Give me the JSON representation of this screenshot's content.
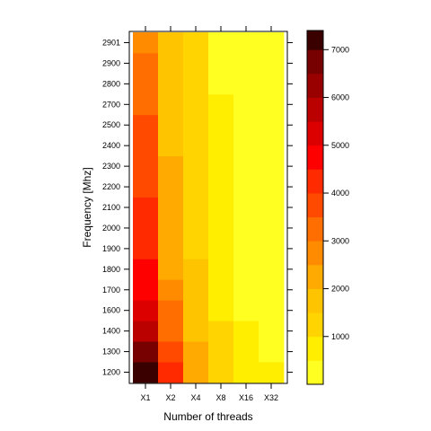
{
  "chart_data": {
    "type": "heatmap",
    "xlabel": "Number of threads",
    "ylabel": "Frequency [Mhz]",
    "x_categories": [
      "X1",
      "X2",
      "X4",
      "X8",
      "X16",
      "X32"
    ],
    "y_categories": [
      "1200",
      "1300",
      "1400",
      "1600",
      "1700",
      "1800",
      "1900",
      "2000",
      "2100",
      "2200",
      "2300",
      "2400",
      "2500",
      "2700",
      "2800",
      "2900",
      "2901"
    ],
    "values": [
      [
        7300,
        4100,
        2100,
        1300,
        600,
        500
      ],
      [
        6600,
        3600,
        2000,
        1200,
        550,
        450
      ],
      [
        5900,
        3300,
        1900,
        1100,
        500,
        420
      ],
      [
        5300,
        3200,
        1800,
        700,
        450,
        380
      ],
      [
        4900,
        2500,
        1600,
        650,
        420,
        350
      ],
      [
        4700,
        2300,
        1500,
        600,
        400,
        150
      ],
      [
        4300,
        2200,
        1400,
        600,
        380,
        350
      ],
      [
        4100,
        2200,
        1300,
        580,
        360,
        200
      ],
      [
        4000,
        2000,
        1250,
        560,
        350,
        200
      ],
      [
        3900,
        2100,
        1200,
        550,
        340,
        250
      ],
      [
        3800,
        2000,
        1150,
        540,
        330,
        320
      ],
      [
        3700,
        1900,
        1100,
        520,
        320,
        100
      ],
      [
        3600,
        1850,
        1100,
        510,
        310,
        300
      ],
      [
        3300,
        1800,
        1050,
        500,
        300,
        290
      ],
      [
        3100,
        1800,
        1000,
        490,
        290,
        280
      ],
      [
        3200,
        1750,
        1000,
        480,
        280,
        270
      ],
      [
        2800,
        1700,
        1000,
        470,
        270,
        260
      ]
    ],
    "colorbar": {
      "breaks": [
        0,
        500,
        1000,
        1500,
        2000,
        2500,
        3000,
        3500,
        4000,
        4500,
        5000,
        5500,
        6000,
        6500,
        7000,
        7500
      ],
      "colors": [
        "#ffff22",
        "#ffee00",
        "#ffd400",
        "#ffc400",
        "#ffaa00",
        "#ff8c00",
        "#ff6e00",
        "#ff4a00",
        "#ff2a00",
        "#ff0000",
        "#dd0000",
        "#bb0000",
        "#990000",
        "#770000",
        "#3a0000"
      ],
      "top_color": "#000000",
      "ticks": [
        1000,
        2000,
        3000,
        4000,
        5000,
        6000,
        7000
      ],
      "range": [
        0,
        7400
      ]
    }
  }
}
